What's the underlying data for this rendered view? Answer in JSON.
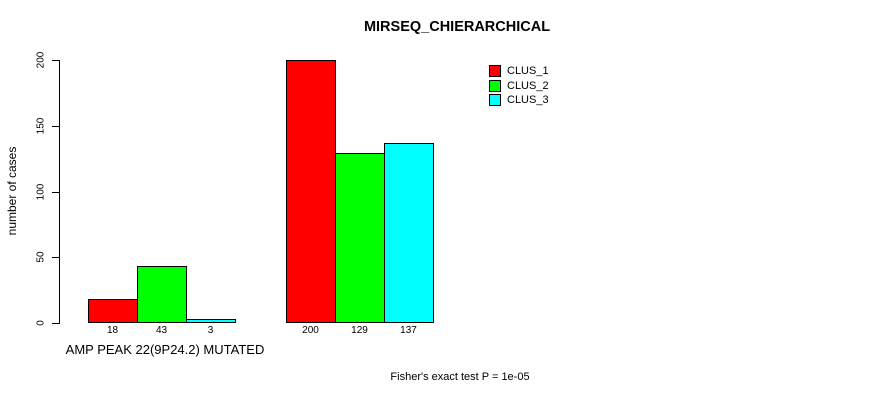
{
  "chart_data": {
    "type": "bar",
    "title": "MIRSEQ_CHIERARCHICAL",
    "ylabel": "number of cases",
    "ylim": [
      0,
      200
    ],
    "yticks": [
      0,
      50,
      100,
      150,
      200
    ],
    "grid": false,
    "legend_position": "top-right",
    "annotation": "Fisher's exact test P = 1e-05",
    "categories": [
      "AMP PEAK 22(9P24.2) MUTATED",
      ""
    ],
    "series": [
      {
        "name": "CLUS_1",
        "color": "#FF0000",
        "values": [
          18,
          200
        ]
      },
      {
        "name": "CLUS_2",
        "color": "#00FF00",
        "values": [
          43,
          129
        ]
      },
      {
        "name": "CLUS_3",
        "color": "#00FFFF",
        "values": [
          3,
          137
        ]
      }
    ],
    "colors": {
      "clus_1": "#FF0000",
      "clus_2": "#00FF00",
      "clus_3": "#00FFFF",
      "axis": "#000000",
      "background": "#FFFFFF"
    }
  }
}
